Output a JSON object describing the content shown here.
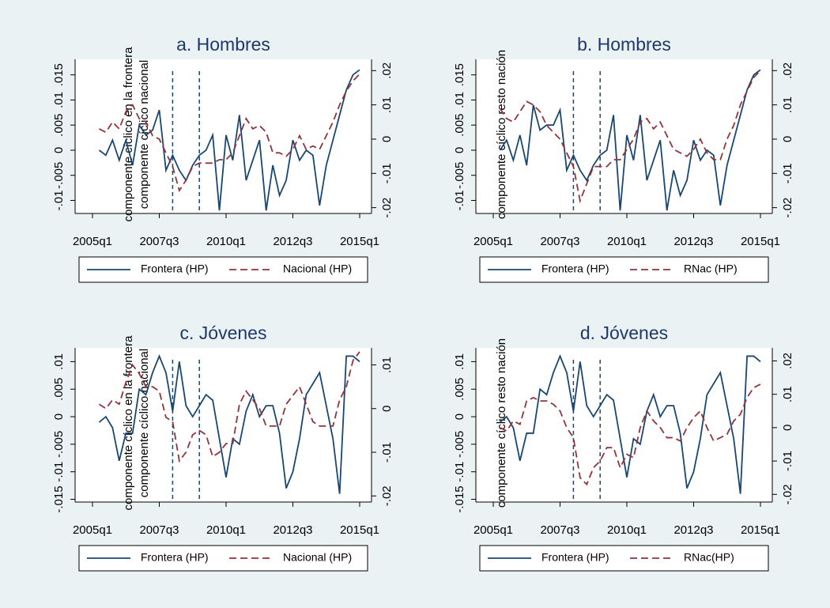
{
  "chart_data": [
    {
      "type": "line",
      "title": "a. Hombres",
      "ylabel": "componente cíclico en la frontera",
      "y2label": "componente cíclico nacional",
      "x": [
        "2005q2",
        "2005q3",
        "2005q4",
        "2006q1",
        "2006q2",
        "2006q3",
        "2006q4",
        "2007q1",
        "2007q2",
        "2007q3",
        "2007q4",
        "2008q1",
        "2008q2",
        "2008q3",
        "2008q4",
        "2009q1",
        "2009q2",
        "2009q3",
        "2009q4",
        "2010q1",
        "2010q2",
        "2010q3",
        "2010q4",
        "2011q1",
        "2011q2",
        "2011q3",
        "2011q4",
        "2012q1",
        "2012q2",
        "2012q3",
        "2012q4",
        "2013q1",
        "2013q2",
        "2013q3",
        "2013q4",
        "2014q1",
        "2014q2",
        "2014q3",
        "2014q4",
        "2015q1"
      ],
      "xlim": [
        "2005q1",
        "2015q1"
      ],
      "xticks": [
        "2005q1",
        "2007q3",
        "2010q1",
        "2012q3",
        "2015q1"
      ],
      "vlines": [
        "2008q1",
        "2009q1"
      ],
      "ylim": [
        -0.0126,
        0.0181
      ],
      "yticks": [
        {
          "value": -0.01,
          "label": "-.01"
        },
        {
          "value": -0.005,
          "label": "-.005"
        },
        0,
        {
          "value": 0.005,
          "label": ".005"
        },
        {
          "value": 0.01,
          "label": ".01"
        },
        {
          "value": 0.015,
          "label": ".015"
        }
      ],
      "y2lim": [
        -0.0217,
        0.0233
      ],
      "y2ticks": [
        {
          "value": -0.02,
          "label": "-.02"
        },
        {
          "value": -0.01,
          "label": "-.01"
        },
        0,
        {
          "value": 0.01,
          "label": ".01"
        },
        {
          "value": 0.02,
          "label": ".02"
        }
      ],
      "series": [
        {
          "name": "Frontera (HP)",
          "color": "#1a476f",
          "values": [
            0,
            -0.001,
            0.002,
            -0.002,
            0.002,
            -0.003,
            0.005,
            0.003,
            0.004,
            0.008,
            -0.004,
            -0.001,
            -0.004,
            -0.006,
            -0.003,
            -0.001,
            0,
            0.003,
            -0.012,
            0.003,
            -0.002,
            0.007,
            -0.006,
            -0.002,
            0.002,
            -0.012,
            -0.003,
            -0.009,
            -0.006,
            0.002,
            -0.002,
            0,
            -0.001,
            -0.011,
            -0.003,
            0.002,
            0.007,
            0.012,
            0.015,
            0.016
          ]
        },
        {
          "name": "Nacional (HP)",
          "color": "#90353b",
          "axis": "y2",
          "values": [
            0.003,
            0.002,
            0.005,
            0.003,
            0.008,
            0.01,
            0.006,
            0.005,
            0.001,
            0,
            -0.004,
            -0.008,
            -0.015,
            -0.012,
            -0.008,
            -0.007,
            -0.007,
            -0.007,
            -0.006,
            -0.006,
            -0.004,
            0.001,
            0.006,
            0.003,
            0.004,
            0.002,
            -0.004,
            -0.004,
            -0.005,
            -0.003,
            0.001,
            -0.003,
            -0.002,
            -0.003,
            0.001,
            0.005,
            0.01,
            0.014,
            0.017,
            0.019
          ]
        }
      ]
    },
    {
      "type": "line",
      "title": "b. Hombres",
      "y2label": "componente cíclico resto nación",
      "x": [
        "2005q2",
        "2005q3",
        "2005q4",
        "2006q1",
        "2006q2",
        "2006q3",
        "2006q4",
        "2007q1",
        "2007q2",
        "2007q3",
        "2007q4",
        "2008q1",
        "2008q2",
        "2008q3",
        "2008q4",
        "2009q1",
        "2009q2",
        "2009q3",
        "2009q4",
        "2010q1",
        "2010q2",
        "2010q3",
        "2010q4",
        "2011q1",
        "2011q2",
        "2011q3",
        "2011q4",
        "2012q1",
        "2012q2",
        "2012q3",
        "2012q4",
        "2013q1",
        "2013q2",
        "2013q3",
        "2013q4",
        "2014q1",
        "2014q2",
        "2014q3",
        "2014q4",
        "2015q1"
      ],
      "xlim": [
        "2005q1",
        "2015q1"
      ],
      "xticks": [
        "2005q1",
        "2007q3",
        "2010q1",
        "2012q3",
        "2015q1"
      ],
      "vlines": [
        "2008q1",
        "2009q1"
      ],
      "ylim": [
        -0.0126,
        0.0181
      ],
      "yticks": [
        {
          "value": -0.01,
          "label": "-.01"
        },
        {
          "value": -0.005,
          "label": "-.005"
        },
        0,
        {
          "value": 0.005,
          "label": ".005"
        },
        {
          "value": 0.01,
          "label": ".01"
        },
        {
          "value": 0.015,
          "label": ".015"
        }
      ],
      "y2lim": [
        -0.0217,
        0.0233
      ],
      "y2ticks": [
        {
          "value": -0.02,
          "label": "-.02"
        },
        {
          "value": -0.01,
          "label": "-.01"
        },
        0,
        {
          "value": 0.01,
          "label": ".01"
        },
        {
          "value": 0.02,
          "label": ".02"
        }
      ],
      "series": [
        {
          "name": "Frontera (HP)",
          "color": "#1a476f",
          "values": [
            0,
            0.002,
            -0.002,
            0.003,
            -0.003,
            0.009,
            0.004,
            0.005,
            0.005,
            0.008,
            -0.004,
            -0.001,
            -0.004,
            -0.006,
            -0.003,
            -0.001,
            0,
            0.007,
            -0.012,
            0.003,
            -0.002,
            0.007,
            -0.006,
            -0.002,
            0.002,
            -0.012,
            -0.004,
            -0.009,
            -0.006,
            0.002,
            -0.002,
            0,
            -0.001,
            -0.011,
            -0.003,
            0.002,
            0.007,
            0.012,
            0.015,
            0.016
          ]
        },
        {
          "name": "RNac  (HP)",
          "color": "#90353b",
          "axis": "y2",
          "values": [
            0.009,
            0.006,
            0.005,
            0.008,
            0.011,
            0.01,
            0.008,
            0.004,
            0.002,
            0,
            -0.004,
            -0.008,
            -0.018,
            -0.013,
            -0.008,
            -0.008,
            -0.008,
            -0.006,
            -0.006,
            -0.003,
            0,
            0.005,
            0.006,
            0.003,
            0.005,
            0.001,
            -0.003,
            -0.004,
            -0.005,
            -0.003,
            0,
            -0.004,
            -0.006,
            -0.006,
            0,
            0.004,
            0.01,
            0.014,
            0.018,
            0.02
          ]
        }
      ]
    },
    {
      "type": "line",
      "title": "c. Jóvenes",
      "ylabel": "componente cíclico en la frontera",
      "y2label": "componente cíclico nacional",
      "x": [
        "2005q2",
        "2005q3",
        "2005q4",
        "2006q1",
        "2006q2",
        "2006q3",
        "2006q4",
        "2007q1",
        "2007q2",
        "2007q3",
        "2007q4",
        "2008q1",
        "2008q2",
        "2008q3",
        "2008q4",
        "2009q1",
        "2009q2",
        "2009q3",
        "2009q4",
        "2010q1",
        "2010q2",
        "2010q3",
        "2010q4",
        "2011q1",
        "2011q2",
        "2011q3",
        "2011q4",
        "2012q1",
        "2012q2",
        "2012q3",
        "2012q4",
        "2013q1",
        "2013q2",
        "2013q3",
        "2013q4",
        "2014q1",
        "2014q2",
        "2014q3",
        "2014q4",
        "2015q1"
      ],
      "xlim": [
        "2005q1",
        "2015q1"
      ],
      "xticks": [
        "2005q1",
        "2007q3",
        "2010q1",
        "2012q3",
        "2015q1"
      ],
      "vlines": [
        "2008q1",
        "2009q1"
      ],
      "ylim": [
        -0.0155,
        0.0125
      ],
      "yticks": [
        {
          "value": -0.015,
          "label": "-.015"
        },
        {
          "value": -0.01,
          "label": "-.01"
        },
        {
          "value": -0.005,
          "label": "-.005"
        },
        0,
        {
          "value": 0.005,
          "label": ".005"
        },
        {
          "value": 0.01,
          "label": ".01"
        }
      ],
      "y2lim": [
        -0.0214,
        0.0139
      ],
      "y2ticks": [
        {
          "value": -0.02,
          "label": "-.02"
        },
        {
          "value": -0.01,
          "label": "-.01"
        },
        0,
        {
          "value": 0.01,
          "label": ".01"
        }
      ],
      "series": [
        {
          "name": "Frontera (HP)",
          "color": "#1a476f",
          "values": [
            -0.001,
            0,
            -0.002,
            -0.008,
            -0.003,
            -0.003,
            0.005,
            0.004,
            0.008,
            0.011,
            0.008,
            0.001,
            0.01,
            0.002,
            0,
            0.002,
            0.004,
            0.003,
            -0.004,
            -0.011,
            -0.004,
            -0.005,
            0.001,
            0.004,
            0,
            0.002,
            0.002,
            -0.003,
            -0.013,
            -0.01,
            -0.004,
            0.004,
            0.006,
            0.008,
            0.002,
            -0.004,
            -0.014,
            0.011,
            0.011,
            0.01
          ]
        },
        {
          "name": "Nacional (HP)",
          "color": "#90353b",
          "axis": "y2",
          "values": [
            0.001,
            0,
            0.002,
            0.001,
            0.006,
            0.01,
            0.008,
            0.005,
            0.005,
            0.004,
            -0.002,
            -0.003,
            -0.012,
            -0.01,
            -0.006,
            -0.005,
            -0.006,
            -0.011,
            -0.01,
            -0.008,
            -0.008,
            0.001,
            0.004,
            0.002,
            0,
            -0.004,
            -0.004,
            -0.004,
            0.001,
            0.003,
            0.005,
            0.001,
            -0.003,
            -0.004,
            -0.004,
            -0.004,
            0.002,
            0.005,
            0.011,
            0.013
          ]
        }
      ]
    },
    {
      "type": "line",
      "title": "d. Jóvenes",
      "y2label": "componente cíclico resto nación",
      "x": [
        "2005q2",
        "2005q3",
        "2005q4",
        "2006q1",
        "2006q2",
        "2006q3",
        "2006q4",
        "2007q1",
        "2007q2",
        "2007q3",
        "2007q4",
        "2008q1",
        "2008q2",
        "2008q3",
        "2008q4",
        "2009q1",
        "2009q2",
        "2009q3",
        "2009q4",
        "2010q1",
        "2010q2",
        "2010q3",
        "2010q4",
        "2011q1",
        "2011q2",
        "2011q3",
        "2011q4",
        "2012q1",
        "2012q2",
        "2012q3",
        "2012q4",
        "2013q1",
        "2013q2",
        "2013q3",
        "2013q4",
        "2014q1",
        "2014q2",
        "2014q3",
        "2014q4",
        "2015q1"
      ],
      "xlim": [
        "2005q1",
        "2015q1"
      ],
      "xticks": [
        "2005q1",
        "2007q3",
        "2010q1",
        "2012q3",
        "2015q1"
      ],
      "vlines": [
        "2008q1",
        "2009q1"
      ],
      "ylim": [
        -0.0155,
        0.0125
      ],
      "yticks": [
        {
          "value": -0.015,
          "label": "-.015"
        },
        {
          "value": -0.01,
          "label": "-.01"
        },
        {
          "value": -0.005,
          "label": "-.005"
        },
        0,
        {
          "value": 0.005,
          "label": ".005"
        },
        {
          "value": 0.01,
          "label": ".01"
        }
      ],
      "y2lim": [
        -0.0223,
        0.0239
      ],
      "y2ticks": [
        {
          "value": -0.02,
          "label": "-.02"
        },
        {
          "value": -0.01,
          "label": "-.01"
        },
        0,
        {
          "value": 0.01,
          "label": ".01"
        },
        {
          "value": 0.02,
          "label": ".02"
        }
      ],
      "series": [
        {
          "name": "Frontera (HP)",
          "color": "#1a476f",
          "values": [
            -0.001,
            0,
            -0.002,
            -0.008,
            -0.003,
            -0.003,
            0.005,
            0.004,
            0.008,
            0.011,
            0.008,
            0.001,
            0.01,
            0.002,
            0,
            0.002,
            0.004,
            0.003,
            -0.004,
            -0.011,
            -0.004,
            -0.005,
            0.001,
            0.004,
            0,
            0.002,
            0.002,
            -0.003,
            -0.013,
            -0.01,
            -0.004,
            0.004,
            0.006,
            0.008,
            0.002,
            -0.004,
            -0.014,
            0.011,
            0.011,
            0.01
          ]
        },
        {
          "name": "RNac(HP)",
          "color": "#90353b",
          "axis": "y2",
          "values": [
            0,
            -0.001,
            0.002,
            0.001,
            0.008,
            0.009,
            0.008,
            0.008,
            0.007,
            0.005,
            0,
            -0.003,
            -0.015,
            -0.017,
            -0.012,
            -0.01,
            -0.006,
            -0.006,
            -0.012,
            -0.008,
            -0.009,
            0,
            0.005,
            0.002,
            0,
            -0.003,
            -0.003,
            -0.004,
            0,
            0.003,
            0.005,
            0,
            -0.004,
            -0.003,
            -0.002,
            0.002,
            0.004,
            0.009,
            0.012,
            0.013
          ]
        }
      ]
    }
  ]
}
